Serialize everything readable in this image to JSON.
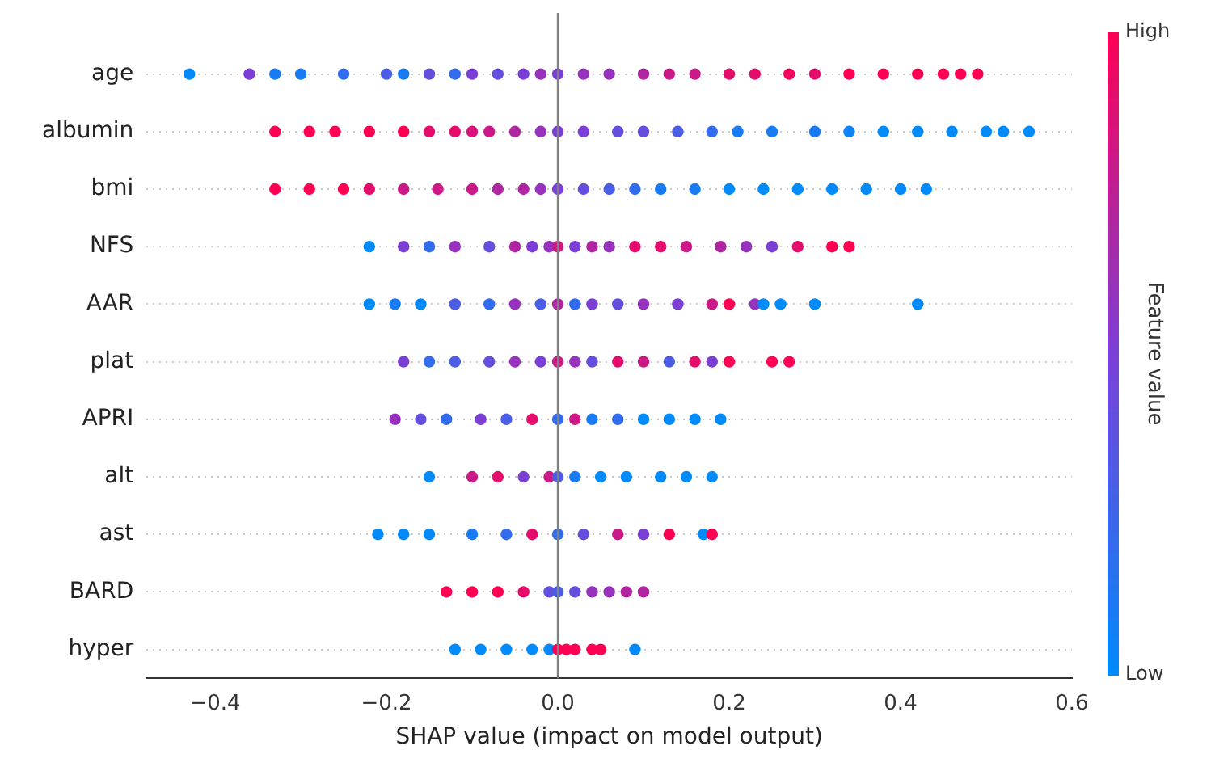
{
  "chart_data": {
    "type": "scatter",
    "orientation": "horizontal",
    "xlabel": "SHAP value (impact on model output)",
    "clabel": "Feature value",
    "categories": [
      "age",
      "albumin",
      "bmi",
      "NFS",
      "AAR",
      "plat",
      "APRI",
      "alt",
      "ast",
      "BARD",
      "hyper"
    ],
    "xlim": [
      -0.48,
      0.6
    ],
    "xticks": [
      {
        "value": -0.4,
        "label": "−0.4"
      },
      {
        "value": -0.2,
        "label": "−0.2"
      },
      {
        "value": 0,
        "label": "0.0"
      },
      {
        "value": 0.2,
        "label": "0.2"
      },
      {
        "value": 0.4,
        "label": "0.4"
      },
      {
        "value": 0.6,
        "label": "0.6"
      }
    ],
    "clim": [
      0,
      1
    ],
    "cticks": [
      {
        "value": 0,
        "label": "Low"
      },
      {
        "value": 1,
        "label": "High"
      }
    ],
    "grid": "y",
    "legend": false,
    "marker": "circle",
    "ref_lines": [
      {
        "axis": "x",
        "value": 0,
        "color": "#808080"
      }
    ],
    "series": [
      {
        "x": [
          "age",
          "age",
          "age",
          "age",
          "age",
          "age",
          "age",
          "age",
          "age",
          "age",
          "age",
          "age",
          "age",
          "age",
          "age",
          "age",
          "age",
          "age",
          "age",
          "age",
          "age",
          "age",
          "age",
          "age",
          "age",
          "age",
          "age",
          "age",
          "age"
        ],
        "values": [
          -0.43,
          -0.36,
          -0.33,
          -0.3,
          -0.25,
          -0.2,
          -0.18,
          -0.15,
          -0.12,
          -0.1,
          -0.07,
          -0.04,
          -0.02,
          0,
          0.03,
          0.06,
          0.1,
          0.13,
          0.16,
          0.2,
          0.23,
          0.27,
          0.3,
          0.34,
          0.38,
          0.42,
          0.45,
          0.47,
          0.49
        ],
        "colors": [
          "#008afa",
          "#7c3fd6",
          "#197bf3",
          "#197bf3",
          "#326cec",
          "#4a5de4",
          "#197bf3",
          "#634edd",
          "#326cec",
          "#7c3fd6",
          "#634edd",
          "#7c3fd6",
          "#9632bc",
          "#7c3fd6",
          "#9632bc",
          "#9632bc",
          "#b026a1",
          "#cb1987",
          "#cb1987",
          "#e50d6c",
          "#e50d6c",
          "#f2065f",
          "#e50d6c",
          "#ff0052",
          "#ff0052",
          "#ff0052",
          "#ff0052",
          "#ff0052",
          "#ff0052"
        ]
      },
      {
        "x": [
          "albumin",
          "albumin",
          "albumin",
          "albumin",
          "albumin",
          "albumin",
          "albumin",
          "albumin",
          "albumin",
          "albumin",
          "albumin",
          "albumin",
          "albumin",
          "albumin",
          "albumin",
          "albumin",
          "albumin",
          "albumin",
          "albumin",
          "albumin",
          "albumin",
          "albumin",
          "albumin",
          "albumin",
          "albumin",
          "albumin",
          "albumin"
        ],
        "values": [
          -0.33,
          -0.29,
          -0.26,
          -0.22,
          -0.18,
          -0.15,
          -0.12,
          -0.1,
          -0.08,
          -0.05,
          -0.02,
          0,
          0.03,
          0.07,
          0.1,
          0.14,
          0.18,
          0.21,
          0.25,
          0.3,
          0.34,
          0.38,
          0.42,
          0.46,
          0.5,
          0.52,
          0.55
        ],
        "colors": [
          "#ff0052",
          "#ff0052",
          "#ff0052",
          "#ff0052",
          "#ff0052",
          "#e50d6c",
          "#e50d6c",
          "#d8137a",
          "#cb1987",
          "#b026a1",
          "#9632bc",
          "#7c3fd6",
          "#7c3fd6",
          "#634edd",
          "#634edd",
          "#4a5de4",
          "#326cec",
          "#197bf3",
          "#197bf3",
          "#197bf3",
          "#0c83f6",
          "#008afa",
          "#008afa",
          "#008afa",
          "#008afa",
          "#008afa",
          "#008afa"
        ]
      },
      {
        "x": [
          "bmi",
          "bmi",
          "bmi",
          "bmi",
          "bmi",
          "bmi",
          "bmi",
          "bmi",
          "bmi",
          "bmi",
          "bmi",
          "bmi",
          "bmi",
          "bmi",
          "bmi",
          "bmi",
          "bmi",
          "bmi",
          "bmi",
          "bmi",
          "bmi",
          "bmi",
          "bmi"
        ],
        "values": [
          -0.33,
          -0.29,
          -0.25,
          -0.22,
          -0.18,
          -0.14,
          -0.1,
          -0.07,
          -0.04,
          -0.02,
          0,
          0.03,
          0.06,
          0.09,
          0.12,
          0.16,
          0.2,
          0.24,
          0.28,
          0.32,
          0.36,
          0.4,
          0.43
        ],
        "colors": [
          "#ff0052",
          "#ff0052",
          "#ff0052",
          "#e50d6c",
          "#cb1987",
          "#cb1987",
          "#cb1987",
          "#b026a1",
          "#b026a1",
          "#9632bc",
          "#7c3fd6",
          "#634edd",
          "#4a5de4",
          "#326cec",
          "#197bf3",
          "#197bf3",
          "#008afa",
          "#008afa",
          "#008afa",
          "#008afa",
          "#008afa",
          "#008afa",
          "#008afa"
        ]
      },
      {
        "x": [
          "NFS",
          "NFS",
          "NFS",
          "NFS",
          "NFS",
          "NFS",
          "NFS",
          "NFS",
          "NFS",
          "NFS",
          "NFS",
          "NFS",
          "NFS",
          "NFS",
          "NFS",
          "NFS",
          "NFS",
          "NFS",
          "NFS",
          "NFS",
          "NFS"
        ],
        "values": [
          -0.22,
          -0.18,
          -0.15,
          -0.12,
          -0.08,
          -0.05,
          -0.03,
          -0.01,
          0,
          0.02,
          0.04,
          0.06,
          0.09,
          0.12,
          0.15,
          0.19,
          0.22,
          0.25,
          0.28,
          0.32,
          0.34
        ],
        "colors": [
          "#008afa",
          "#7c3fd6",
          "#326cec",
          "#9632bc",
          "#634edd",
          "#b026a1",
          "#7c3fd6",
          "#9632bc",
          "#cb1987",
          "#7c3fd6",
          "#b026a1",
          "#9632bc",
          "#e50d6c",
          "#e50d6c",
          "#cb1987",
          "#b026a1",
          "#9632bc",
          "#7c3fd6",
          "#e50d6c",
          "#ff0052",
          "#ff0052"
        ]
      },
      {
        "x": [
          "AAR",
          "AAR",
          "AAR",
          "AAR",
          "AAR",
          "AAR",
          "AAR",
          "AAR",
          "AAR",
          "AAR",
          "AAR",
          "AAR",
          "AAR",
          "AAR",
          "AAR",
          "AAR",
          "AAR",
          "AAR",
          "AAR",
          "AAR"
        ],
        "values": [
          -0.22,
          -0.19,
          -0.16,
          -0.12,
          -0.08,
          -0.05,
          -0.02,
          0,
          0.02,
          0.04,
          0.07,
          0.1,
          0.14,
          0.18,
          0.2,
          0.23,
          0.24,
          0.26,
          0.3,
          0.42
        ],
        "colors": [
          "#008afa",
          "#197bf3",
          "#008afa",
          "#4a5de4",
          "#326cec",
          "#9632bc",
          "#4a5de4",
          "#b026a1",
          "#326cec",
          "#7c3fd6",
          "#634edd",
          "#9632bc",
          "#7c3fd6",
          "#cb1987",
          "#ff0052",
          "#9632bc",
          "#008afa",
          "#008afa",
          "#008afa",
          "#008afa"
        ]
      },
      {
        "x": [
          "plat",
          "plat",
          "plat",
          "plat",
          "plat",
          "plat",
          "plat",
          "plat",
          "plat",
          "plat",
          "plat",
          "plat",
          "plat",
          "plat",
          "plat",
          "plat",
          "plat"
        ],
        "values": [
          -0.18,
          -0.15,
          -0.12,
          -0.08,
          -0.05,
          -0.02,
          0,
          0.02,
          0.04,
          0.07,
          0.1,
          0.13,
          0.16,
          0.18,
          0.2,
          0.25,
          0.27
        ],
        "colors": [
          "#7c3fd6",
          "#326cec",
          "#4a5de4",
          "#634edd",
          "#9632bc",
          "#7c3fd6",
          "#cb1987",
          "#9632bc",
          "#634edd",
          "#e50d6c",
          "#cb1987",
          "#4a5de4",
          "#e50d6c",
          "#7c3fd6",
          "#ff0052",
          "#ff0052",
          "#ff0052"
        ]
      },
      {
        "x": [
          "APRI",
          "APRI",
          "APRI",
          "APRI",
          "APRI",
          "APRI",
          "APRI",
          "APRI",
          "APRI",
          "APRI",
          "APRI",
          "APRI",
          "APRI",
          "APRI"
        ],
        "values": [
          -0.19,
          -0.16,
          -0.13,
          -0.09,
          -0.06,
          -0.03,
          0,
          0.02,
          0.04,
          0.07,
          0.1,
          0.13,
          0.16,
          0.19
        ],
        "colors": [
          "#9632bc",
          "#634edd",
          "#326cec",
          "#7c3fd6",
          "#4a5de4",
          "#e50d6c",
          "#326cec",
          "#cb1987",
          "#197bf3",
          "#326cec",
          "#008afa",
          "#008afa",
          "#008afa",
          "#008afa"
        ]
      },
      {
        "x": [
          "alt",
          "alt",
          "alt",
          "alt",
          "alt",
          "alt",
          "alt",
          "alt",
          "alt",
          "alt",
          "alt",
          "alt"
        ],
        "values": [
          -0.15,
          -0.1,
          -0.07,
          -0.04,
          -0.01,
          0,
          0.02,
          0.05,
          0.08,
          0.12,
          0.15,
          0.18
        ],
        "colors": [
          "#008afa",
          "#cb1987",
          "#e50d6c",
          "#7c3fd6",
          "#cb1987",
          "#4a5de4",
          "#197bf3",
          "#008afa",
          "#008afa",
          "#008afa",
          "#008afa",
          "#008afa"
        ]
      },
      {
        "x": [
          "ast",
          "ast",
          "ast",
          "ast",
          "ast",
          "ast",
          "ast",
          "ast",
          "ast",
          "ast",
          "ast",
          "ast",
          "ast"
        ],
        "values": [
          -0.21,
          -0.18,
          -0.15,
          -0.1,
          -0.06,
          -0.03,
          0,
          0.03,
          0.07,
          0.1,
          0.13,
          0.17,
          0.18
        ],
        "colors": [
          "#008afa",
          "#008afa",
          "#008afa",
          "#197bf3",
          "#326cec",
          "#e50d6c",
          "#326cec",
          "#634edd",
          "#cb1987",
          "#7c3fd6",
          "#ff0052",
          "#008afa",
          "#ff0052"
        ]
      },
      {
        "x": [
          "BARD",
          "BARD",
          "BARD",
          "BARD",
          "BARD",
          "BARD",
          "BARD",
          "BARD",
          "BARD",
          "BARD",
          "BARD"
        ],
        "values": [
          -0.13,
          -0.1,
          -0.07,
          -0.04,
          -0.01,
          0,
          0.02,
          0.04,
          0.06,
          0.08,
          0.1
        ],
        "colors": [
          "#ff0052",
          "#ff0052",
          "#ff0052",
          "#e50d6c",
          "#634edd",
          "#4a5de4",
          "#634edd",
          "#9632bc",
          "#9632bc",
          "#b026a1",
          "#b026a1"
        ]
      },
      {
        "x": [
          "hyper",
          "hyper",
          "hyper",
          "hyper",
          "hyper",
          "hyper",
          "hyper",
          "hyper",
          "hyper",
          "hyper",
          "hyper"
        ],
        "values": [
          -0.12,
          -0.09,
          -0.06,
          -0.03,
          -0.01,
          0,
          0.01,
          0.02,
          0.04,
          0.05,
          0.09
        ],
        "colors": [
          "#008afa",
          "#008afa",
          "#008afa",
          "#008afa",
          "#008afa",
          "#ff0052",
          "#ff0052",
          "#ff0052",
          "#ff0052",
          "#ff0052",
          "#008afa"
        ]
      }
    ]
  }
}
